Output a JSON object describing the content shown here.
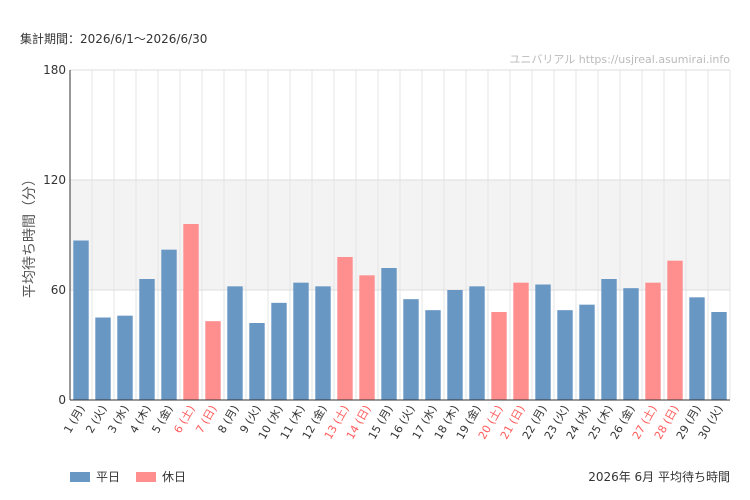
{
  "period_label": "集計期間：2026/6/1〜2026/6/30",
  "footer_caption": "2026年 6月 平均待ち時間",
  "chart_data": {
    "type": "bar",
    "title": "",
    "watermark": "ユニバリアル https://usjreal.asumirai.info",
    "xlabel": "",
    "ylabel": "平均待ち時間（分）",
    "ylim": [
      0,
      180
    ],
    "yticks": [
      0,
      60,
      120,
      180
    ],
    "grid": true,
    "highlight_band": [
      60,
      120
    ],
    "legend_position": "bottom-left",
    "categories": [
      "1 (月)",
      "2 (火)",
      "3 (水)",
      "4 (木)",
      "5 (金)",
      "6 (土)",
      "7 (日)",
      "8 (月)",
      "9 (火)",
      "10 (水)",
      "11 (木)",
      "12 (金)",
      "13 (土)",
      "14 (日)",
      "15 (月)",
      "16 (火)",
      "17 (水)",
      "18 (木)",
      "19 (金)",
      "20 (土)",
      "21 (日)",
      "22 (月)",
      "23 (火)",
      "24 (水)",
      "25 (木)",
      "26 (金)",
      "27 (土)",
      "28 (日)",
      "29 (月)",
      "30 (火)"
    ],
    "values": [
      87,
      45,
      46,
      66,
      82,
      96,
      43,
      62,
      42,
      53,
      64,
      62,
      78,
      68,
      72,
      55,
      49,
      60,
      62,
      48,
      64,
      63,
      49,
      52,
      66,
      61,
      64,
      76,
      56,
      48
    ],
    "day_type": [
      "weekday",
      "weekday",
      "weekday",
      "weekday",
      "weekday",
      "holiday",
      "holiday",
      "weekday",
      "weekday",
      "weekday",
      "weekday",
      "weekday",
      "holiday",
      "holiday",
      "weekday",
      "weekday",
      "weekday",
      "weekday",
      "weekday",
      "holiday",
      "holiday",
      "weekday",
      "weekday",
      "weekday",
      "weekday",
      "weekday",
      "holiday",
      "holiday",
      "weekday",
      "weekday"
    ],
    "series": [
      {
        "name": "平日",
        "color": "#6897c4"
      },
      {
        "name": "休日",
        "color": "#ff8f8f"
      }
    ],
    "colors": {
      "holiday_label": "#ff5a5a",
      "band": "#f3f3f3",
      "grid": "#e6e6e6",
      "axis": "#333333",
      "watermark": "#bbbbbb"
    }
  }
}
